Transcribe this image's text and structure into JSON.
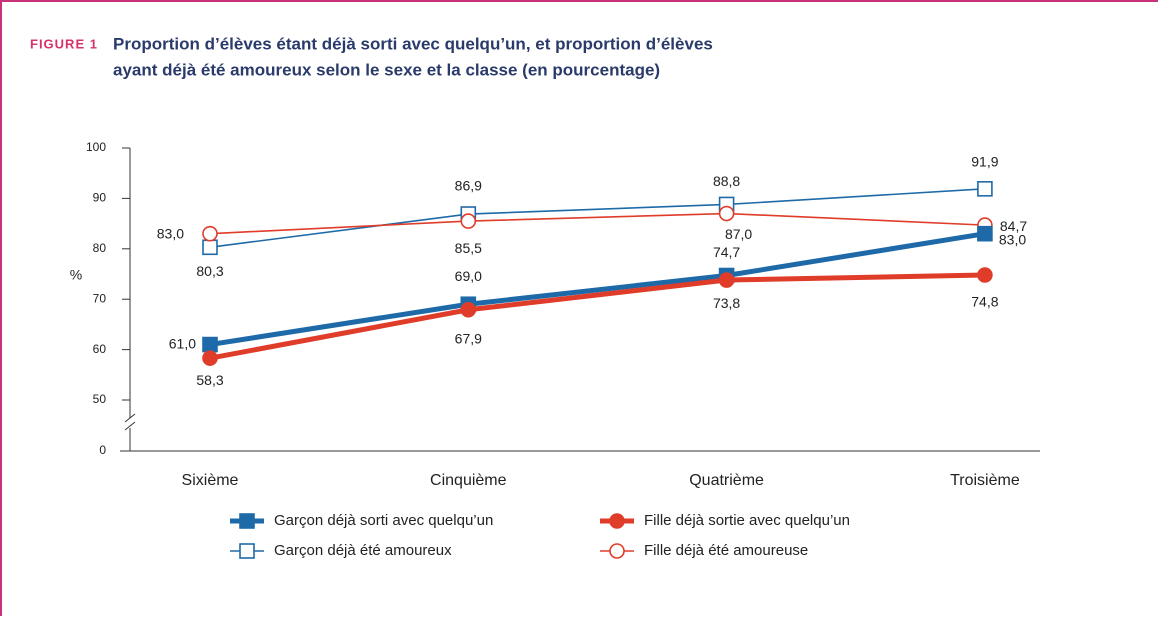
{
  "chart_data": {
    "type": "line",
    "figure_label": "FIGURE 1",
    "title": [
      "Proportion d’élèves étant déjà sorti avec quelqu’un, et proportion d’élèves",
      "ayant déjà été amoureux selon le sexe et la classe (en pourcentage)"
    ],
    "ylabel": "%",
    "categories": [
      "Sixième",
      "Cinquième",
      "Quatrième",
      "Troisième"
    ],
    "ylim": [
      0,
      100
    ],
    "yticks": [
      0,
      50,
      60,
      70,
      80,
      90,
      100
    ],
    "axis_break": true,
    "series": [
      {
        "name": "Garçon déjà sorti avec quelqu’un",
        "color": "#1e6aa8",
        "marker": "square",
        "filled": true,
        "values": [
          61.0,
          69.0,
          74.7,
          83.0
        ],
        "value_labels": [
          "61,0",
          "69,0",
          "74,7",
          "83,0"
        ]
      },
      {
        "name": "Garçon déjà été amoureux",
        "color": "#1e6aa8",
        "marker": "square",
        "filled": false,
        "values": [
          80.3,
          86.9,
          88.8,
          91.9
        ],
        "value_labels": [
          "80,3",
          "86,9",
          "88,8",
          "91,9"
        ]
      },
      {
        "name": "Fille déjà sortie avec quelqu’un",
        "color": "#e03c2a",
        "marker": "circle",
        "filled": true,
        "values": [
          58.3,
          67.9,
          73.8,
          74.8
        ],
        "value_labels": [
          "58,3",
          "67,9",
          "73,8",
          "74,8"
        ]
      },
      {
        "name": "Fille déjà été amoureuse",
        "color": "#e03c2a",
        "marker": "circle",
        "filled": false,
        "values": [
          83.0,
          85.5,
          87.0,
          84.7
        ],
        "value_labels": [
          "83,0",
          "85,5",
          "87,0",
          "84,7"
        ]
      }
    ]
  }
}
